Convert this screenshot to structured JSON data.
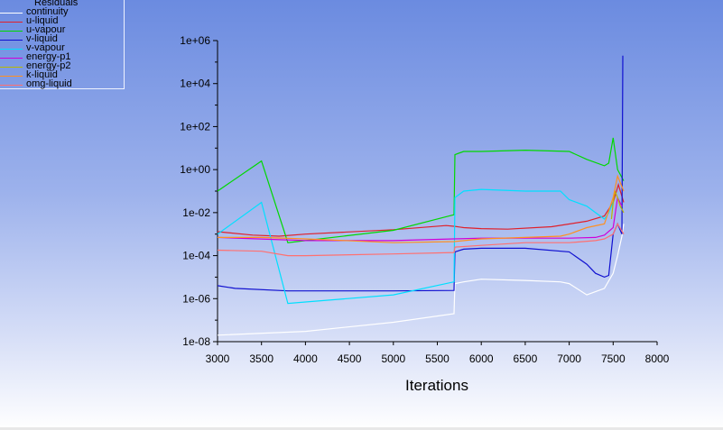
{
  "chart_data": {
    "type": "line",
    "xlabel": "Iterations",
    "ylabel": "",
    "xlim": [
      3000,
      8000
    ],
    "ylim": [
      1e-08,
      1000000.0
    ],
    "yscale": "log",
    "grid": false,
    "legend_title": "Residuals",
    "legend_position": "top-left",
    "xticks": [
      "3000",
      "3500",
      "4000",
      "4500",
      "5000",
      "5500",
      "6000",
      "6500",
      "7000",
      "7500",
      "8000"
    ],
    "yticks": [
      "1e-08",
      "1e-06",
      "1e-04",
      "1e-02",
      "1e+00",
      "1e+02",
      "1e+04",
      "1e+06"
    ],
    "series": [
      {
        "name": "continuity",
        "color": "#ffffff",
        "x": [
          3000,
          4000,
          5000,
          5690,
          5700,
          5800,
          6000,
          6500,
          6900,
          7000,
          7200,
          7400,
          7500,
          7550,
          7600,
          7620
        ],
        "y": [
          2e-08,
          3e-08,
          8e-08,
          2e-07,
          5e-06,
          6e-06,
          8e-06,
          7e-06,
          6e-06,
          5e-06,
          1.5e-06,
          3e-06,
          1.5e-05,
          0.0001,
          0.0008,
          0.003
        ]
      },
      {
        "name": "u-liquid",
        "color": "#e0202a",
        "x": [
          3000,
          3400,
          3700,
          4000,
          5000,
          5600,
          5700,
          5800,
          6000,
          6300,
          6800,
          7200,
          7400,
          7500,
          7560,
          7620
        ],
        "y": [
          0.0013,
          0.0009,
          0.0008,
          0.001,
          0.0016,
          0.0025,
          0.0023,
          0.002,
          0.0018,
          0.0017,
          0.0022,
          0.004,
          0.007,
          0.03,
          0.2,
          0.03
        ]
      },
      {
        "name": "u-vapour",
        "color": "#00d800",
        "x": [
          3000,
          3500,
          3800,
          4000,
          5000,
          5690,
          5700,
          5800,
          6000,
          6500,
          7000,
          7200,
          7400,
          7450,
          7500,
          7550,
          7620
        ],
        "y": [
          0.1,
          2.5,
          0.0004,
          0.0005,
          0.0015,
          0.008,
          5,
          7,
          7,
          8,
          7,
          3,
          1.5,
          2,
          30,
          1,
          0.3
        ]
      },
      {
        "name": "v-liquid",
        "color": "#1010d0",
        "x": [
          3000,
          3200,
          3800,
          4500,
          5000,
          5690,
          5700,
          5800,
          6000,
          6500,
          7000,
          7200,
          7300,
          7400,
          7450,
          7500,
          7550,
          7600,
          7610
        ],
        "y": [
          4e-06,
          3e-06,
          2.3e-06,
          2.3e-06,
          2.3e-06,
          2.4e-06,
          0.00015,
          0.0002,
          0.00022,
          0.00022,
          0.00015,
          4e-05,
          1.5e-05,
          1e-05,
          1.2e-05,
          0.001,
          0.003,
          0.001,
          200000.0
        ]
      },
      {
        "name": "v-vapour",
        "color": "#00e0ff",
        "x": [
          3000,
          3500,
          3800,
          4000,
          5000,
          5690,
          5700,
          5800,
          6000,
          6500,
          6900,
          7000,
          7200,
          7300,
          7400,
          7450,
          7500
        ],
        "y": [
          0.001,
          0.03,
          6e-07,
          7e-07,
          1.5e-06,
          6e-06,
          0.05,
          0.1,
          0.12,
          0.1,
          0.1,
          0.04,
          0.02,
          0.01,
          0.005,
          0.01,
          0.03
        ]
      },
      {
        "name": "energy-p1",
        "color": "#d000d8",
        "x": [
          3000,
          4000,
          5000,
          5690,
          6000,
          6500,
          7000,
          7300,
          7400,
          7500,
          7550,
          7600
        ],
        "y": [
          0.0007,
          0.0005,
          0.0005,
          0.0006,
          0.00065,
          0.00065,
          0.00065,
          0.0007,
          0.0009,
          0.002,
          0.05,
          0.02
        ]
      },
      {
        "name": "energy-p2",
        "color": "#b8b800",
        "x": [
          7480,
          7500,
          7520,
          7550,
          7580,
          7620
        ],
        "y": [
          0.005,
          0.03,
          0.1,
          0.05,
          0.02,
          0.01
        ]
      },
      {
        "name": "k-liquid",
        "color": "#ff9020",
        "x": [
          3000,
          3500,
          4000,
          5000,
          5690,
          6000,
          6500,
          6900,
          7000,
          7200,
          7400,
          7500,
          7550,
          7620
        ],
        "y": [
          0.0007,
          0.0007,
          0.0006,
          0.0004,
          0.00045,
          0.0006,
          0.0007,
          0.0008,
          0.001,
          0.002,
          0.003,
          0.05,
          0.5,
          0.1
        ]
      },
      {
        "name": "omg-liquid",
        "color": "#ff7070",
        "x": [
          3000,
          3500,
          3800,
          4000,
          5000,
          5690,
          5700,
          6000,
          6500,
          7000,
          7300,
          7400,
          7500,
          7550,
          7620
        ],
        "y": [
          0.00018,
          0.00016,
          0.0001,
          0.0001,
          0.00012,
          0.00014,
          0.00025,
          0.0003,
          0.0004,
          0.0004,
          0.0005,
          0.0006,
          0.001,
          0.003,
          0.001
        ]
      }
    ]
  }
}
